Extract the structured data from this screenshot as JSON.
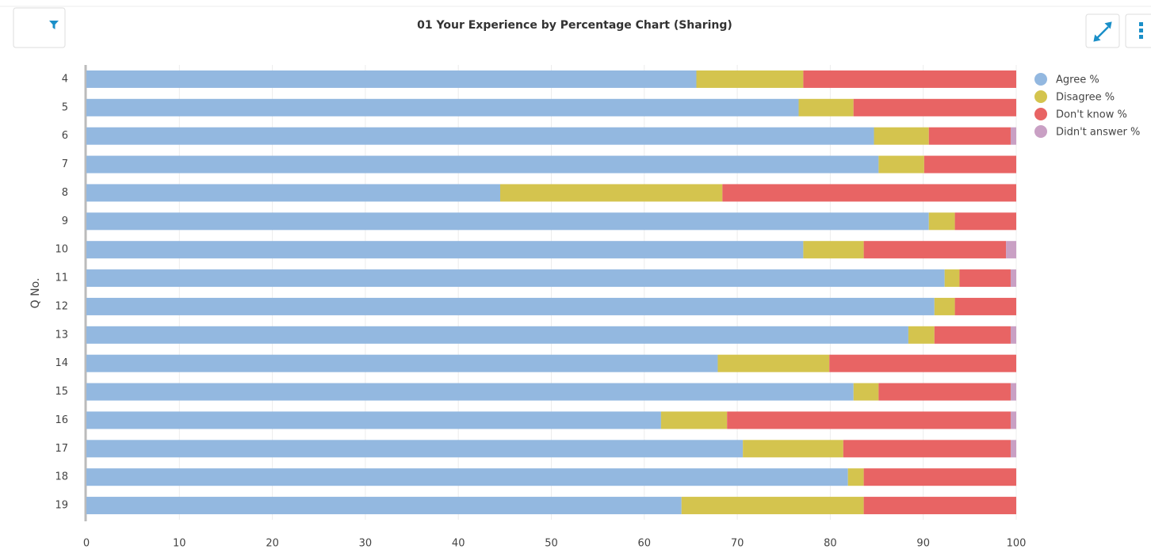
{
  "chart_data": {
    "type": "stacked_bar_horizontal",
    "title": "01 Your Experience by Percentage Chart (Sharing)",
    "y_label": "Q No.",
    "categories": [
      "4",
      "5",
      "6",
      "7",
      "8",
      "9",
      "10",
      "11",
      "12",
      "13",
      "14",
      "15",
      "16",
      "17",
      "18",
      "19"
    ],
    "series": [
      {
        "name": "Agree %",
        "color": "#93b8e0",
        "values": [
          65.6,
          76.6,
          84.7,
          85.2,
          44.5,
          90.6,
          77.1,
          92.3,
          91.2,
          88.4,
          67.9,
          82.5,
          61.8,
          70.6,
          81.9,
          64.0
        ]
      },
      {
        "name": "Disagree %",
        "color": "#d4c44e",
        "values": [
          11.5,
          5.9,
          5.9,
          4.9,
          23.9,
          2.8,
          6.5,
          1.6,
          2.2,
          2.8,
          12.0,
          2.7,
          7.1,
          10.8,
          1.7,
          19.6
        ]
      },
      {
        "name": "Don't know %",
        "color": "#e86464",
        "values": [
          22.9,
          17.5,
          8.8,
          9.9,
          31.6,
          6.6,
          15.3,
          5.5,
          6.6,
          8.2,
          20.1,
          14.2,
          30.5,
          18.0,
          16.4,
          16.4
        ]
      },
      {
        "name": "Didn't answer %",
        "color": "#c9a0c4",
        "values": [
          0,
          0,
          0.6,
          0,
          0,
          0,
          1.1,
          0.6,
          0,
          0.6,
          0,
          0.6,
          0.6,
          0.6,
          0,
          0
        ]
      }
    ],
    "xlim": [
      0,
      100
    ],
    "xticks": [
      0,
      10,
      20,
      30,
      40,
      50,
      60,
      70,
      80,
      90,
      100
    ],
    "grid": true,
    "legend": "right"
  }
}
